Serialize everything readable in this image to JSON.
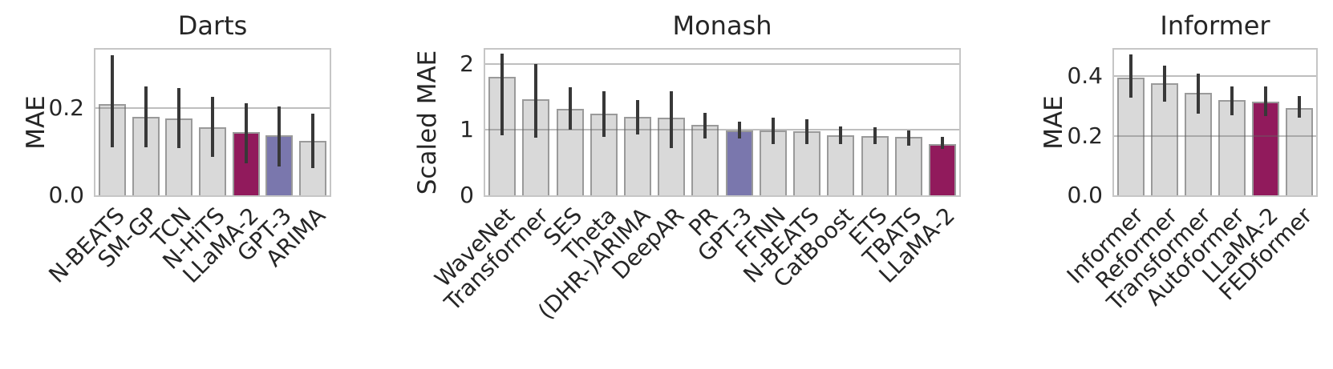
{
  "figure": {
    "background": "#ffffff",
    "text_color": "#262626"
  },
  "colors": {
    "bar_default": "#d9d9d9",
    "bar_edge": "#9a9a9a",
    "llama2": "#911a5c",
    "gpt3": "#7a77ad",
    "error_bar": "#383838",
    "gridline": "#b9b9b9",
    "frame": "#c6c6c6"
  },
  "chart_data": [
    {
      "type": "bar",
      "title": "Darts",
      "ylabel": "MAE",
      "ylim": [
        0,
        0.335
      ],
      "grid": true,
      "legend_position": "none",
      "yticks": [
        {
          "value": 0.0,
          "label": "0.0"
        },
        {
          "value": 0.2,
          "label": "0.2"
        }
      ],
      "categories": [
        "N-BEATS",
        "SM-GP",
        "TCN",
        "N-HiTS",
        "LLaMA-2",
        "GPT-3",
        "ARIMA"
      ],
      "values": [
        0.21,
        0.18,
        0.176,
        0.156,
        0.145,
        0.138,
        0.126
      ],
      "error_low": [
        0.11,
        0.11,
        0.108,
        0.089,
        0.073,
        0.067,
        0.063
      ],
      "error_high": [
        0.323,
        0.25,
        0.246,
        0.226,
        0.211,
        0.205,
        0.187
      ],
      "bar_colors": [
        null,
        null,
        null,
        null,
        "llama2",
        "gpt3",
        null
      ]
    },
    {
      "type": "bar",
      "title": "Monash",
      "ylabel": "Scaled MAE",
      "ylim": [
        0,
        2.22
      ],
      "grid": true,
      "legend_position": "none",
      "yticks": [
        {
          "value": 0,
          "label": "0"
        },
        {
          "value": 1,
          "label": "1"
        },
        {
          "value": 2,
          "label": "2"
        }
      ],
      "categories": [
        "WaveNet",
        "Transformer",
        "SES",
        "Theta",
        "(DHR-)ARIMA",
        "DeepAR",
        "PR",
        "GPT-3",
        "FFNN",
        "N-BEATS",
        "CatBoost",
        "ETS",
        "TBATS",
        "LLaMA-2"
      ],
      "values": [
        1.8,
        1.47,
        1.32,
        1.245,
        1.195,
        1.18,
        1.08,
        0.99,
        0.99,
        0.975,
        0.91,
        0.9,
        0.885,
        0.78
      ],
      "error_low": [
        0.92,
        0.88,
        1.0,
        0.89,
        0.93,
        0.72,
        0.86,
        0.87,
        0.78,
        0.78,
        0.78,
        0.78,
        0.76,
        0.71
      ],
      "error_high": [
        2.16,
        2.0,
        1.65,
        1.59,
        1.455,
        1.59,
        1.26,
        1.12,
        1.18,
        1.16,
        1.05,
        1.04,
        0.99,
        0.89
      ],
      "bar_colors": [
        null,
        null,
        null,
        null,
        null,
        null,
        null,
        "gpt3",
        null,
        null,
        null,
        null,
        null,
        "llama2"
      ]
    },
    {
      "type": "bar",
      "title": "Informer",
      "ylabel": "MAE",
      "ylim": [
        0,
        0.49
      ],
      "grid": true,
      "legend_position": "none",
      "yticks": [
        {
          "value": 0.0,
          "label": "0.0"
        },
        {
          "value": 0.2,
          "label": "0.2"
        },
        {
          "value": 0.4,
          "label": "0.4"
        }
      ],
      "categories": [
        "Informer",
        "Reformer",
        "Transformer",
        "Autoformer",
        "LLaMA-2",
        "FEDformer"
      ],
      "values": [
        0.397,
        0.376,
        0.345,
        0.32,
        0.314,
        0.294
      ],
      "error_low": [
        0.329,
        0.315,
        0.274,
        0.268,
        0.265,
        0.262
      ],
      "error_high": [
        0.473,
        0.436,
        0.409,
        0.365,
        0.365,
        0.334
      ],
      "bar_colors": [
        null,
        null,
        null,
        null,
        "llama2",
        null
      ]
    }
  ]
}
